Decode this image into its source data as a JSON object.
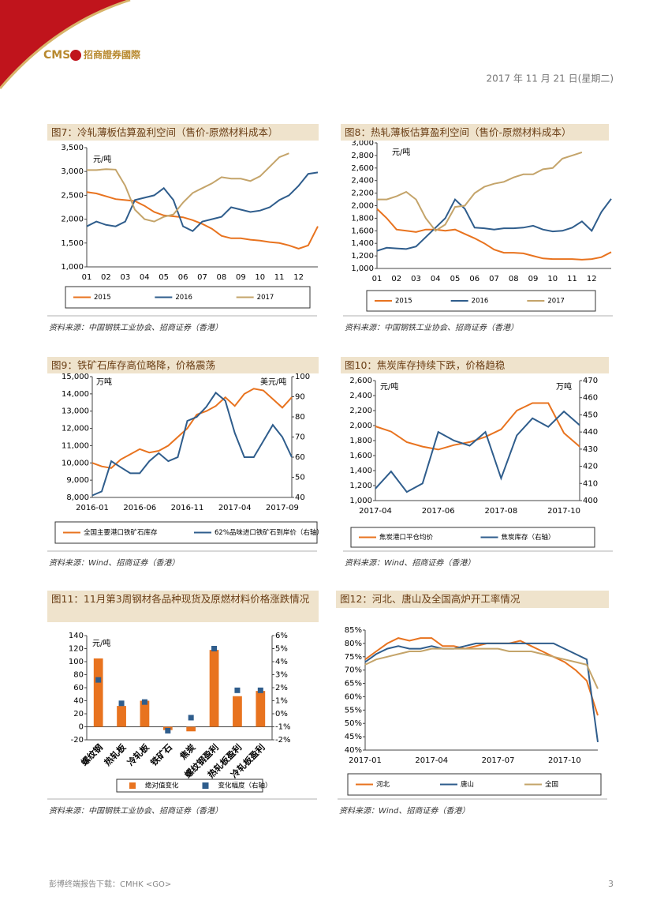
{
  "header": {
    "logo": "CMS",
    "company": "招商證券國際",
    "date": "2017 年 11 月 21 日(星期二)"
  },
  "chart_data": [
    {
      "type": "line",
      "title": "图7：冷轧薄板估算盈利空间（售价-原燃材料成本）",
      "y_label": "元/吨",
      "source": "资料来源：中国钢铁工业协会、招商证券（香港）",
      "categories": [
        "01",
        null,
        "02",
        null,
        "03",
        null,
        "04",
        null,
        "05",
        null,
        "06",
        null,
        "07",
        null,
        "08",
        null,
        "09",
        null,
        "10",
        null,
        "11",
        null,
        "12",
        null,
        null
      ],
      "series": [
        {
          "name": "2015",
          "color": "#e8731f",
          "values": [
            2570,
            2540,
            2480,
            2420,
            2400,
            2380,
            2280,
            2150,
            2080,
            2060,
            2040,
            1980,
            1900,
            1800,
            1650,
            1600,
            1600,
            1570,
            1550,
            1520,
            1500,
            1450,
            1380,
            1450,
            1850
          ]
        },
        {
          "name": "2016",
          "color": "#2f5d8c",
          "values": [
            1850,
            1950,
            1880,
            1850,
            1950,
            2400,
            2450,
            2500,
            2650,
            2400,
            1850,
            1750,
            1950,
            2000,
            2050,
            2250,
            2200,
            2150,
            2180,
            2250,
            2400,
            2500,
            2700,
            2950,
            2980
          ]
        },
        {
          "name": "2017",
          "color": "#c4a46a",
          "values": [
            3030,
            3030,
            3050,
            3040,
            2700,
            2200,
            2000,
            1950,
            2050,
            2100,
            2350,
            2550,
            2650,
            2750,
            2880,
            2850,
            2850,
            2800,
            2900,
            3100,
            3300,
            3380,
            null,
            null,
            null
          ]
        }
      ],
      "ylim": [
        1000,
        3500
      ],
      "yticks": [
        {
          "value": 1000,
          "label": "1,000"
        },
        {
          "value": 1500,
          "label": "1,500"
        },
        {
          "value": 2000,
          "label": "2,000"
        },
        {
          "value": 2500,
          "label": "2,500"
        },
        {
          "value": 3000,
          "label": "3,000"
        },
        {
          "value": 3500,
          "label": "3,500"
        }
      ],
      "grid": false,
      "legend": "bottom"
    },
    {
      "type": "line",
      "title": "图8：热轧薄板估算盈利空间（售价-原燃材料成本）",
      "y_label": "元/吨",
      "source": "资料来源：中国钢铁工业协会、招商证券（香港）",
      "categories": [
        "01",
        null,
        "02",
        null,
        "03",
        null,
        "04",
        null,
        "05",
        null,
        "06",
        null,
        "07",
        null,
        "08",
        null,
        "09",
        null,
        "10",
        null,
        "11",
        null,
        "12",
        null,
        null
      ],
      "series": [
        {
          "name": "2015",
          "color": "#e8731f",
          "values": [
            1950,
            1800,
            1620,
            1600,
            1580,
            1620,
            1620,
            1600,
            1620,
            1550,
            1480,
            1400,
            1300,
            1250,
            1250,
            1240,
            1200,
            1160,
            1150,
            1150,
            1150,
            1140,
            1150,
            1180,
            1260
          ]
        },
        {
          "name": "2016",
          "color": "#2f5d8c",
          "values": [
            1280,
            1330,
            1320,
            1310,
            1350,
            1500,
            1650,
            1800,
            2100,
            1950,
            1650,
            1640,
            1620,
            1640,
            1640,
            1650,
            1680,
            1620,
            1590,
            1600,
            1650,
            1750,
            1600,
            1900,
            2110
          ]
        },
        {
          "name": "2017",
          "color": "#c4a46a",
          "values": [
            2100,
            2100,
            2150,
            2220,
            2100,
            1800,
            1600,
            1700,
            1980,
            2000,
            2200,
            2300,
            2350,
            2380,
            2450,
            2500,
            2500,
            2580,
            2600,
            2750,
            2800,
            2850,
            null,
            null,
            null
          ]
        }
      ],
      "ylim": [
        1000,
        3000
      ],
      "yticks": [
        {
          "value": 1000,
          "label": "1,000"
        },
        {
          "value": 1200,
          "label": "1,200"
        },
        {
          "value": 1400,
          "label": "1,400"
        },
        {
          "value": 1600,
          "label": "1,600"
        },
        {
          "value": 1800,
          "label": "1,800"
        },
        {
          "value": 2000,
          "label": "2,000"
        },
        {
          "value": 2200,
          "label": "2,200"
        },
        {
          "value": 2400,
          "label": "2,400"
        },
        {
          "value": 2600,
          "label": "2,600"
        },
        {
          "value": 2800,
          "label": "2,800"
        },
        {
          "value": 3000,
          "label": "3,000"
        }
      ],
      "grid": false,
      "legend": "bottom"
    },
    {
      "type": "line",
      "title": "图9：铁矿石库存高位略降，价格震荡",
      "y_label": "万吨",
      "y2_label": "美元/吨",
      "source": "资料来源：Wind、招商证券（香港）",
      "categories": [
        "2016-01",
        null,
        null,
        null,
        null,
        "2016-06",
        null,
        null,
        null,
        null,
        "2016-11",
        null,
        null,
        null,
        null,
        "2017-04",
        null,
        null,
        null,
        null,
        "2017-09",
        null
      ],
      "series": [
        {
          "name": "全国主要港口铁矿石库存",
          "color": "#e8731f",
          "values": [
            10000,
            9800,
            9700,
            10200,
            10500,
            10800,
            10600,
            10700,
            11000,
            11500,
            12000,
            12800,
            13000,
            13300,
            13800,
            13300,
            14000,
            14300,
            14200,
            13700,
            13200,
            13800
          ]
        },
        {
          "name": "62%品味进口铁矿石到岸价（右轴）",
          "color": "#2f5d8c",
          "axis": "y2",
          "values": [
            41,
            43,
            58,
            55,
            52,
            52,
            58,
            62,
            58,
            60,
            78,
            80,
            85,
            92,
            88,
            72,
            60,
            60,
            68,
            76,
            70,
            60
          ]
        }
      ],
      "ylim": [
        8000,
        15000
      ],
      "yticks": [
        {
          "value": 8000,
          "label": "8,000"
        },
        {
          "value": 9000,
          "label": "9,000"
        },
        {
          "value": 10000,
          "label": "10,000"
        },
        {
          "value": 11000,
          "label": "11,000"
        },
        {
          "value": 12000,
          "label": "12,000"
        },
        {
          "value": 13000,
          "label": "13,000"
        },
        {
          "value": 14000,
          "label": "14,000"
        },
        {
          "value": 15000,
          "label": "15,000"
        }
      ],
      "y2lim": [
        40,
        100
      ],
      "y2ticks": [
        40,
        50,
        60,
        70,
        80,
        90,
        100
      ],
      "grid": false,
      "legend": "bottom"
    },
    {
      "type": "line",
      "title": "图10：焦炭库存持续下跌，价格趋稳",
      "y_label": "元/吨",
      "y2_label": "万吨",
      "source": "资料来源：Wind、招商证券（香港）",
      "categories": [
        "2017-04",
        null,
        null,
        null,
        "2017-06",
        null,
        null,
        null,
        "2017-08",
        null,
        null,
        null,
        "2017-10",
        null
      ],
      "series": [
        {
          "name": "焦炭港口平仓均价",
          "color": "#e8731f",
          "values": [
            1990,
            1920,
            1780,
            1720,
            1680,
            1740,
            1780,
            1850,
            1950,
            2200,
            2300,
            2300,
            1900,
            1720
          ]
        },
        {
          "name": "焦炭库存（右轴）",
          "color": "#2f5d8c",
          "axis": "y2",
          "values": [
            407,
            417,
            405,
            410,
            440,
            435,
            432,
            440,
            413,
            438,
            448,
            443,
            452,
            444
          ]
        }
      ],
      "ylim": [
        1000,
        2600
      ],
      "yticks": [
        {
          "value": 1000,
          "label": "1,000"
        },
        {
          "value": 1200,
          "label": "1,200"
        },
        {
          "value": 1400,
          "label": "1,400"
        },
        {
          "value": 1600,
          "label": "1,600"
        },
        {
          "value": 1800,
          "label": "1,800"
        },
        {
          "value": 2000,
          "label": "2,000"
        },
        {
          "value": 2200,
          "label": "2,200"
        },
        {
          "value": 2400,
          "label": "2,400"
        },
        {
          "value": 2600,
          "label": "2,600"
        }
      ],
      "y2lim": [
        400,
        470
      ],
      "y2ticks": [
        400,
        410,
        420,
        430,
        440,
        450,
        460,
        470
      ],
      "grid": false,
      "legend": "bottom"
    },
    {
      "type": "bar",
      "title": "图11：11月第3周钢材各品种现货及原燃材料价格涨跌情况",
      "y_label": "元/吨",
      "source": "资料来源：中国钢铁工业协会、招商证券（香港）",
      "categories": [
        "螺纹钢",
        "热轧板",
        "冷轧板",
        "铁矿石",
        "焦炭",
        "螺纹钢盈利",
        "热轧板盈利",
        "冷轧板盈利"
      ],
      "series": [
        {
          "name": "绝对值变化",
          "type": "bar",
          "color": "#e8731f",
          "values": [
            105,
            32,
            40,
            -5,
            -7,
            118,
            47,
            55
          ]
        },
        {
          "name": "变化幅度（右轴）",
          "type": "scatter",
          "color": "#2f5d8c",
          "axis": "y2",
          "values": [
            2.6,
            0.8,
            0.9,
            -1.3,
            -0.3,
            5.0,
            1.8,
            1.8
          ]
        }
      ],
      "ylim": [
        -20,
        140
      ],
      "yticks": [
        -20,
        0,
        20,
        40,
        60,
        80,
        100,
        120,
        140
      ],
      "y2lim": [
        -2,
        6
      ],
      "y2ticks": [
        {
          "value": -2,
          "label": "-2%"
        },
        {
          "value": -1,
          "label": "-1%"
        },
        {
          "value": 0,
          "label": "0%"
        },
        {
          "value": 1,
          "label": "1%"
        },
        {
          "value": 2,
          "label": "2%"
        },
        {
          "value": 3,
          "label": "3%"
        },
        {
          "value": 4,
          "label": "4%"
        },
        {
          "value": 5,
          "label": "5%"
        },
        {
          "value": 6,
          "label": "6%"
        }
      ],
      "grid": false,
      "legend": "bottom"
    },
    {
      "type": "line",
      "title": "图12：河北、唐山及全国高炉开工率情况",
      "source": "资料来源：Wind、招商证券（香港）",
      "categories": [
        "2017-01",
        null,
        null,
        null,
        null,
        null,
        "2017-04",
        null,
        null,
        null,
        null,
        null,
        "2017-07",
        null,
        null,
        null,
        null,
        null,
        "2017-10",
        null,
        null,
        null
      ],
      "series": [
        {
          "name": "河北",
          "color": "#e8731f",
          "values": [
            74,
            77,
            80,
            82,
            81,
            82,
            82,
            79,
            79,
            78,
            79,
            80,
            80,
            80,
            81,
            79,
            77,
            75,
            73,
            70,
            66,
            53
          ]
        },
        {
          "name": "唐山",
          "color": "#2f5d8c",
          "values": [
            73,
            76,
            78,
            79,
            78,
            78,
            79,
            78,
            78,
            79,
            80,
            80,
            80,
            80,
            80,
            80,
            80,
            80,
            78,
            76,
            74,
            43
          ]
        },
        {
          "name": "全国",
          "color": "#c4a46a",
          "values": [
            72,
            74,
            75,
            76,
            77,
            77,
            78,
            78,
            78,
            78,
            78,
            78,
            78,
            77,
            77,
            77,
            76,
            75,
            74,
            73,
            72,
            63
          ]
        }
      ],
      "ylim": [
        40,
        85
      ],
      "yticks": [
        {
          "value": 40,
          "label": "40%"
        },
        {
          "value": 45,
          "label": "45%"
        },
        {
          "value": 50,
          "label": "50%"
        },
        {
          "value": 55,
          "label": "55%"
        },
        {
          "value": 60,
          "label": "60%"
        },
        {
          "value": 65,
          "label": "65%"
        },
        {
          "value": 70,
          "label": "70%"
        },
        {
          "value": 75,
          "label": "75%"
        },
        {
          "value": 80,
          "label": "80%"
        },
        {
          "value": 85,
          "label": "85%"
        }
      ],
      "grid": false,
      "legend": "bottom"
    }
  ],
  "footer": {
    "text": "彭博终端报告下载：CMHK <GO>",
    "page": "3"
  }
}
